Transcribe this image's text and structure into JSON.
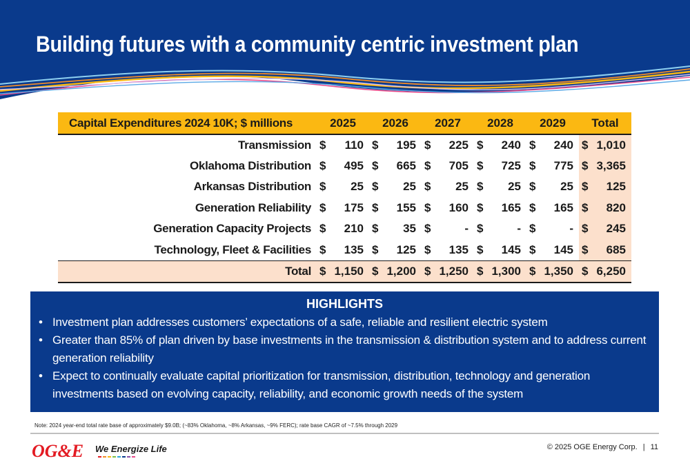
{
  "slide": {
    "title": "Building futures with a community centric investment plan"
  },
  "table": {
    "header": [
      "Capital Expenditures 2024 10K; $ millions",
      "2025",
      "2026",
      "2027",
      "2028",
      "2029",
      "Total"
    ],
    "currency": "$",
    "rows": [
      {
        "label": "Transmission",
        "values": [
          "110",
          "195",
          "225",
          "240",
          "240"
        ],
        "total": "1,010"
      },
      {
        "label": "Oklahoma Distribution",
        "values": [
          "495",
          "665",
          "705",
          "725",
          "775"
        ],
        "total": "3,365"
      },
      {
        "label": "Arkansas Distribution",
        "values": [
          "25",
          "25",
          "25",
          "25",
          "25"
        ],
        "total": "125"
      },
      {
        "label": "Generation Reliability",
        "values": [
          "175",
          "155",
          "160",
          "165",
          "165"
        ],
        "total": "820"
      },
      {
        "label": "Generation Capacity Projects",
        "values": [
          "210",
          "35",
          "-",
          "-",
          "-"
        ],
        "total": "245"
      },
      {
        "label": "Technology, Fleet & Facilities",
        "values": [
          "135",
          "125",
          "135",
          "145",
          "145"
        ],
        "total": "685"
      }
    ],
    "total_row": {
      "label": "Total",
      "values": [
        "1,150",
        "1,200",
        "1,250",
        "1,300",
        "1,350"
      ],
      "total": "6,250"
    }
  },
  "highlights": {
    "title": "HIGHLIGHTS",
    "bullet_glyph": "•",
    "items": [
      "Investment plan addresses customers’ expectations of a safe, reliable and resilient electric system",
      "Greater than 85% of plan driven by base investments in the transmission & distribution system and to address current generation reliability",
      "Expect to continually evaluate capital prioritization for transmission, distribution, technology and generation investments based on evolving capacity, reliability, and economic growth needs of the system"
    ]
  },
  "note": "Note: 2024 year-end total rate base of approximately $9.0B; (~83% Oklahoma, ~8% Arkansas, ~9% FERC); rate base CAGR of ~7.5% through 2029",
  "footer": {
    "logo_text": "OG&E",
    "tagline": "We Energize Life",
    "copyright": "© 2025 OGE Energy Corp.",
    "separator": "|",
    "page_number": "11"
  },
  "colors": {
    "header_blue": "#0a3a8c",
    "table_header": "#fbb812",
    "total_col": "#fce0cc",
    "logo_red": "#e31b23"
  }
}
